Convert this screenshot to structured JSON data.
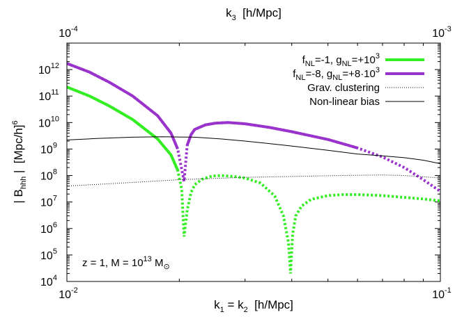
{
  "chart_data": {
    "type": "line",
    "xscale": "log",
    "yscale": "log",
    "xlim": [
      0.01,
      0.1
    ],
    "ylim": [
      10000,
      10000000000000
    ],
    "x2lim": [
      0.0001,
      0.001
    ],
    "xlabel": {
      "base": "k",
      "sub1": "1",
      "mid": " = k",
      "sub2": "2",
      "unit": "  [h/Mpc]"
    },
    "x2label": {
      "base": "k",
      "sub": "3",
      "unit": "  [h/Mpc]"
    },
    "ylabel": {
      "pre": "| B",
      "sub": "hhh",
      "mid": " |  [Mpc/h]",
      "sup": "6"
    },
    "xticks": [
      {
        "value": 0.01,
        "base": "10",
        "exp": "-2"
      },
      {
        "value": 0.1,
        "base": "10",
        "exp": "-1"
      }
    ],
    "x2ticks": [
      {
        "value": 0.0001,
        "base": "10",
        "exp": "-4"
      },
      {
        "value": 0.001,
        "base": "10",
        "exp": "-3"
      }
    ],
    "yticks": [
      {
        "value": 10000,
        "base": "10",
        "exp": "4"
      },
      {
        "value": 100000,
        "base": "10",
        "exp": "5"
      },
      {
        "value": 1000000,
        "base": "10",
        "exp": "6"
      },
      {
        "value": 10000000,
        "base": "10",
        "exp": "7"
      },
      {
        "value": 100000000,
        "base": "10",
        "exp": "8"
      },
      {
        "value": 1000000000,
        "base": "10",
        "exp": "9"
      },
      {
        "value": 10000000000,
        "base": "10",
        "exp": "10"
      },
      {
        "value": 100000000000,
        "base": "10",
        "exp": "11"
      },
      {
        "value": 1000000000000,
        "base": "10",
        "exp": "12"
      }
    ],
    "annotation": {
      "pre": "z = 1, M = 10",
      "sup": "13",
      "mid": " M",
      "sub": "⊙"
    },
    "legend_position": "top-right",
    "series": [
      {
        "legend": [
          {
            "t": "f"
          },
          {
            "t": "NL",
            "s": "sub"
          },
          {
            "t": "=-1, g"
          },
          {
            "t": "NL",
            "s": "sub"
          },
          {
            "t": "=+10"
          },
          {
            "t": "3",
            "s": "sup"
          }
        ],
        "color": "#33ee22",
        "style": "solid-thick-dotted-below",
        "x": [
          0.01,
          0.0115,
          0.013,
          0.015,
          0.0175,
          0.019,
          0.0198,
          0.0203,
          0.0206,
          0.021,
          0.0215,
          0.022,
          0.023,
          0.0245,
          0.026,
          0.028,
          0.03,
          0.033,
          0.036,
          0.038,
          0.0392,
          0.0397,
          0.0402,
          0.041,
          0.0425,
          0.045,
          0.05,
          0.055,
          0.06,
          0.07,
          0.08,
          0.09,
          0.1
        ],
        "y": [
          220000000000,
          100000000000,
          42000000000,
          13000000000,
          2400000000,
          600000000,
          160000000,
          30000000,
          500000,
          5000000,
          23000000,
          45000000,
          72000000,
          96000000,
          100000000,
          92000000,
          80000000,
          52000000,
          17000000,
          3000000,
          300000,
          20000,
          600000,
          3000000,
          7000000,
          12500000,
          17500000,
          19000000,
          19000000,
          17500000,
          15000000,
          13000000,
          11000000
        ],
        "solid_min": 100000000
      },
      {
        "legend": [
          {
            "t": "f"
          },
          {
            "t": "NL",
            "s": "sub"
          },
          {
            "t": "=-8, g"
          },
          {
            "t": "NL",
            "s": "sub"
          },
          {
            "t": "=+8·10"
          },
          {
            "t": "3",
            "s": "sup"
          }
        ],
        "color": "#9933cc",
        "style": "solid-thick-dotted-below",
        "x": [
          0.01,
          0.0115,
          0.013,
          0.015,
          0.0175,
          0.019,
          0.0198,
          0.0203,
          0.0206,
          0.021,
          0.0215,
          0.022,
          0.0235,
          0.025,
          0.027,
          0.03,
          0.035,
          0.04,
          0.05,
          0.06,
          0.07,
          0.08,
          0.09,
          0.1
        ],
        "y": [
          1700000000000,
          800000000000,
          330000000000,
          100000000000,
          18000000000,
          4000000000,
          1000000000,
          170000000,
          60000000,
          1400000000,
          3500000000,
          5500000000,
          8200000000,
          9500000000,
          10000000000,
          9000000000,
          6500000000,
          4500000000,
          2300000000,
          1100000000,
          500000000,
          200000000,
          70000000,
          25000000
        ],
        "solid_min": 1000000000
      },
      {
        "legend": [
          {
            "t": "Grav. clustering"
          }
        ],
        "color": "#000000",
        "style": "dotted-thin",
        "x": [
          0.01,
          0.015,
          0.02,
          0.03,
          0.04,
          0.05,
          0.06,
          0.07,
          0.08,
          0.09,
          0.1
        ],
        "y": [
          40000000,
          55000000,
          70000000,
          85000000,
          92000000,
          98000000,
          102000000,
          105000000,
          100000000,
          90000000,
          80000000
        ]
      },
      {
        "legend": [
          {
            "t": "Non-linear bias"
          }
        ],
        "color": "#000000",
        "style": "solid-thin",
        "x": [
          0.01,
          0.012,
          0.015,
          0.018,
          0.022,
          0.026,
          0.03,
          0.035,
          0.04,
          0.05,
          0.06,
          0.07,
          0.08,
          0.09,
          0.1
        ],
        "y": [
          2200000000,
          2500000000,
          2800000000,
          2900000000,
          2800000000,
          2400000000,
          2000000000,
          1600000000,
          1300000000,
          900000000,
          650000000,
          550000000,
          470000000,
          380000000,
          280000000
        ]
      }
    ]
  }
}
